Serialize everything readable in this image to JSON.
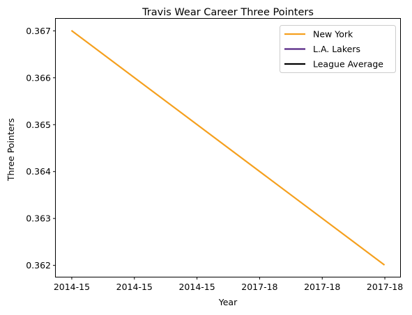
{
  "chart_data": {
    "type": "line",
    "title": "Travis Wear Career Three Pointers",
    "xlabel": "Year",
    "ylabel": "Three Pointers",
    "x_tick_labels": [
      "2014-15",
      "2014-15",
      "2014-15",
      "2017-18",
      "2017-18",
      "2017-18"
    ],
    "y_ticks": [
      0.362,
      0.363,
      0.364,
      0.365,
      0.366,
      0.367
    ],
    "y_tick_labels": [
      "0.362",
      "0.363",
      "0.364",
      "0.365",
      "0.366",
      "0.367"
    ],
    "xlim": [
      -0.25,
      5.25
    ],
    "ylim": [
      0.36175,
      0.36725
    ],
    "grid": false,
    "legend_position": "top-right",
    "series": [
      {
        "name": "New York",
        "color": "#F5A01E",
        "x": [
          0,
          5
        ],
        "values": [
          0.367,
          0.362
        ]
      },
      {
        "name": "L.A. Lakers",
        "color": "#552583",
        "x": [],
        "values": []
      },
      {
        "name": "League Average",
        "color": "#000000",
        "x": [],
        "values": []
      }
    ]
  }
}
